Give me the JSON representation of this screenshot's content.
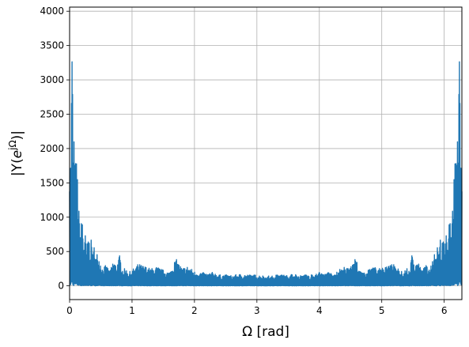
{
  "chart_data": {
    "type": "line",
    "title": "",
    "xlabel": "Ω [rad]",
    "ylabel": "|Y(e^{jΩ})|",
    "ylabel_parts": {
      "prefix": "|Y(",
      "base": "e",
      "superscript": "jΩ",
      "suffix": ")|"
    },
    "xlim": [
      0,
      6.2832
    ],
    "ylim": [
      -200,
      4060
    ],
    "xticks": [
      0,
      1,
      2,
      3,
      4,
      5,
      6
    ],
    "yticks": [
      0,
      500,
      1000,
      1500,
      2000,
      2500,
      3000,
      3500,
      4000
    ],
    "grid": true,
    "legend": "none",
    "series": [
      {
        "color": "#1f77b4",
        "symmetric_about_pi": true,
        "x": [
          0.0,
          0.02,
          0.04,
          0.05,
          0.06,
          0.07,
          0.08,
          0.1,
          0.12,
          0.15,
          0.18,
          0.2,
          0.22,
          0.25,
          0.27,
          0.3,
          0.33,
          0.35,
          0.38,
          0.4,
          0.42,
          0.45,
          0.48,
          0.5,
          0.52,
          0.55,
          0.58,
          0.6,
          0.65,
          0.7,
          0.75,
          0.8,
          0.85,
          0.9,
          0.95,
          1.0,
          1.1,
          1.2,
          1.3,
          1.4,
          1.5,
          1.6,
          1.7,
          1.8,
          1.9,
          2.0,
          2.1,
          2.2,
          2.3,
          2.4,
          2.5,
          2.6,
          2.7,
          2.8,
          2.9,
          3.0,
          3.1,
          3.1416
        ],
        "values": [
          2500,
          1800,
          3880,
          2700,
          1900,
          2500,
          1700,
          1900,
          1800,
          1100,
          800,
          1140,
          700,
          780,
          500,
          800,
          550,
          700,
          450,
          720,
          400,
          520,
          380,
          350,
          260,
          280,
          300,
          280,
          220,
          380,
          300,
          450,
          250,
          250,
          200,
          230,
          320,
          290,
          250,
          280,
          230,
          200,
          400,
          260,
          290,
          210,
          200,
          180,
          200,
          160,
          160,
          150,
          170,
          170,
          160,
          160,
          150,
          140
        ]
      }
    ]
  }
}
